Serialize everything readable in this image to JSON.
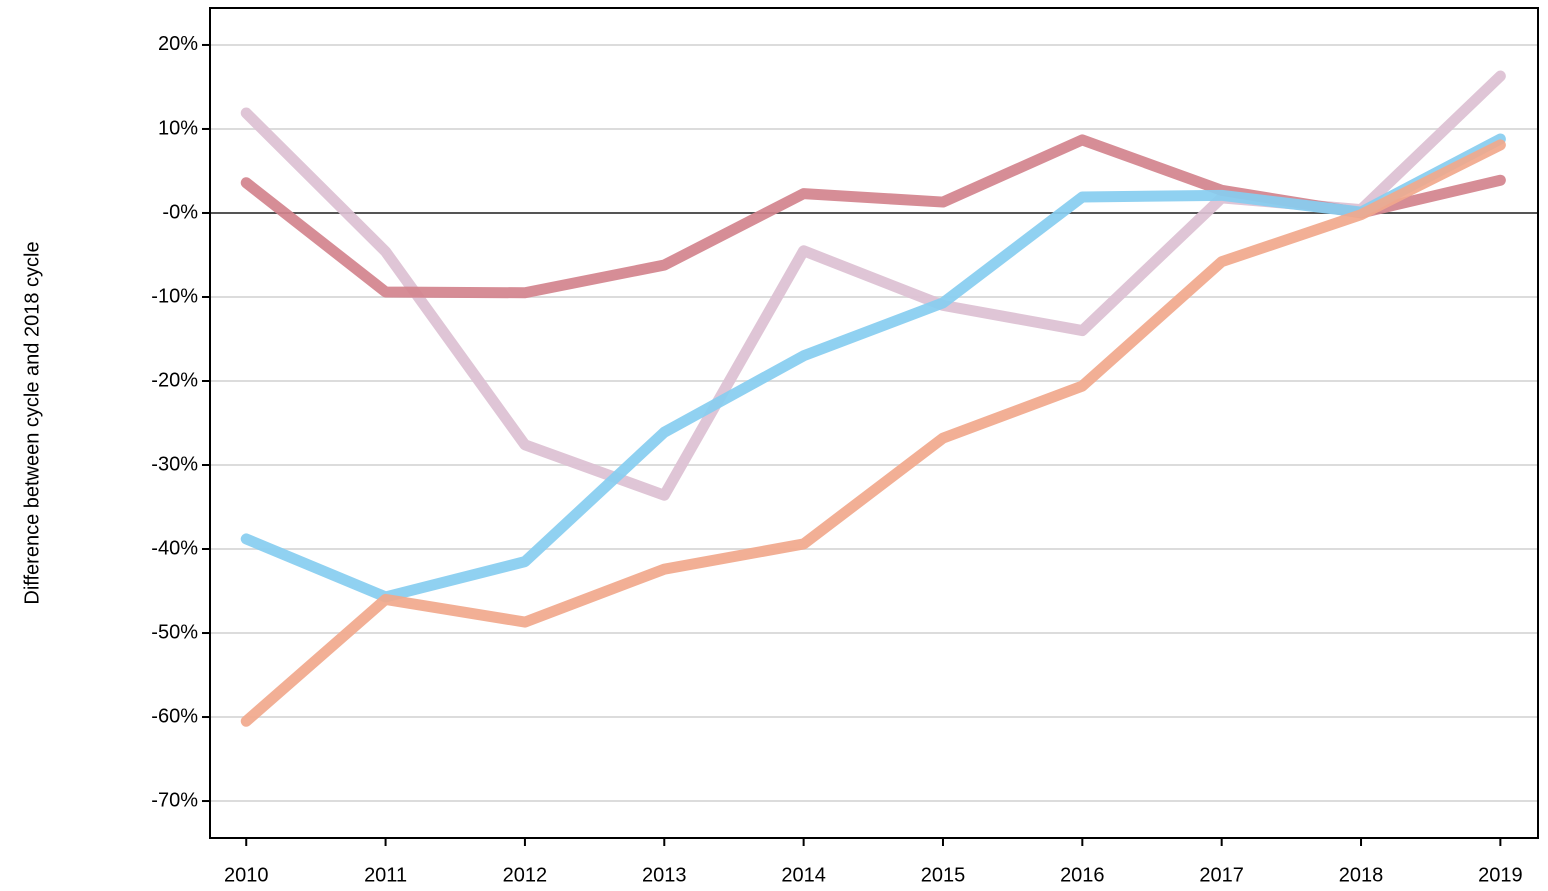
{
  "chart_data": {
    "type": "line",
    "y_label": "Difference between cycle and 2018 cycle",
    "x": [
      2010,
      2011,
      2012,
      2013,
      2014,
      2015,
      2016,
      2017,
      2018,
      2019
    ],
    "xlim": [
      2009.74,
      2019.27
    ],
    "xticks": [
      2010,
      2011,
      2012,
      2013,
      2014,
      2015,
      2016,
      2017,
      2018,
      2019
    ],
    "ylim": [
      -74.4,
      24.4
    ],
    "yticks": [
      {
        "value": 20,
        "label": "20%"
      },
      {
        "value": 10,
        "label": "10%"
      },
      {
        "value": 0,
        "label": "-0%"
      },
      {
        "value": -10,
        "label": "-10%"
      },
      {
        "value": -20,
        "label": "-20%"
      },
      {
        "value": -30,
        "label": "-30%"
      },
      {
        "value": -40,
        "label": "-40%"
      },
      {
        "value": -50,
        "label": "-50%"
      },
      {
        "value": -60,
        "label": "-60%"
      },
      {
        "value": -70,
        "label": "-70%"
      }
    ],
    "grid": true,
    "zero_line": true,
    "series": [
      {
        "color": "#dcc0d3",
        "values": [
          11.9,
          -4.6,
          -27.6,
          -33.6,
          -4.5,
          -11.0,
          -14.0,
          1.8,
          0.4,
          16.3
        ]
      },
      {
        "color": "#d3838d",
        "values": [
          3.6,
          -9.4,
          -9.5,
          -6.2,
          2.3,
          1.3,
          8.7,
          2.7,
          0,
          3.9
        ]
      },
      {
        "color": "#87cdf0",
        "values": [
          -38.8,
          -45.7,
          -41.5,
          -26.1,
          -17.0,
          -10.7,
          1.9,
          2.1,
          0.1,
          8.8
        ]
      },
      {
        "color": "#f1a88c",
        "values": [
          -60.5,
          -46.0,
          -48.7,
          -42.4,
          -39.4,
          -26.8,
          -20.6,
          -5.8,
          -0.2,
          8.1
        ]
      }
    ]
  }
}
